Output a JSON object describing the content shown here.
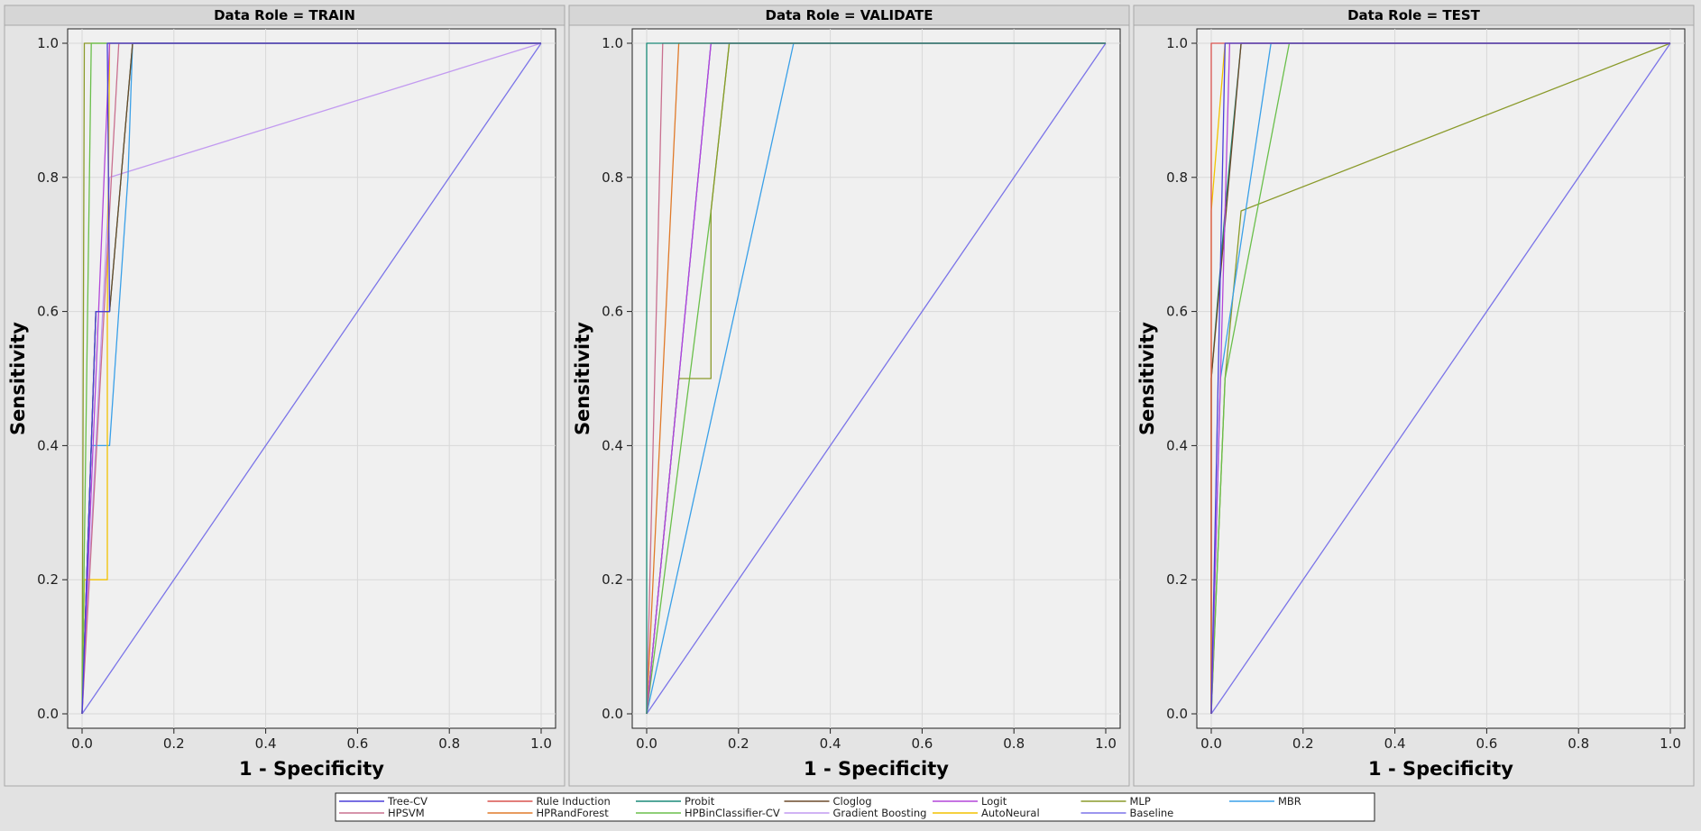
{
  "colors": {
    "Tree-CV": "#4a3fd8",
    "Rule Induction": "#d9534f",
    "Probit": "#1a8a78",
    "Cloglog": "#6b4a2a",
    "Logit": "#b347d9",
    "MLP": "#8a9a2a",
    "MBR": "#3aa0e8",
    "HPSVM": "#c9708f",
    "HPRandForest": "#e07a2a",
    "HPBinClassifier-CV": "#6abf4b",
    "Gradient Boosting": "#c29af0",
    "AutoNeural": "#f2c200",
    "Baseline": "#7b74e8"
  },
  "legend": {
    "placement": "bottom-center",
    "entries": [
      "Tree-CV",
      "Rule Induction",
      "Probit",
      "Cloglog",
      "Logit",
      "MLP",
      "MBR",
      "HPSVM",
      "HPRandForest",
      "HPBinClassifier-CV",
      "Gradient Boosting",
      "AutoNeural",
      "Baseline"
    ]
  },
  "chart_data": [
    {
      "type": "line",
      "title": "Data Role = TRAIN",
      "xlabel": "1 - Specificity",
      "ylabel": "Sensitivity",
      "xlim": [
        0,
        1
      ],
      "ylim": [
        0,
        1
      ],
      "xticks": [
        "0.0",
        "0.2",
        "0.4",
        "0.6",
        "0.8",
        "1.0"
      ],
      "yticks": [
        "0.0",
        "0.2",
        "0.4",
        "0.6",
        "0.8",
        "1.0"
      ],
      "grid": true,
      "series": [
        {
          "name": "Baseline",
          "x": [
            0,
            1
          ],
          "y": [
            0,
            1
          ]
        },
        {
          "name": "Gradient Boosting",
          "x": [
            0,
            0.06,
            1
          ],
          "y": [
            0,
            0.8,
            1
          ]
        },
        {
          "name": "MBR",
          "x": [
            0,
            0.02,
            0.06,
            0.1,
            0.11,
            1
          ],
          "y": [
            0,
            0.4,
            0.4,
            0.8,
            1,
            1
          ]
        },
        {
          "name": "AutoNeural",
          "x": [
            0,
            0.005,
            0.055,
            0.055,
            0.06,
            1
          ],
          "y": [
            0,
            0.2,
            0.2,
            0.6,
            1,
            1
          ]
        },
        {
          "name": "Probit",
          "x": [
            0,
            0.03,
            0.06,
            0.11,
            1
          ],
          "y": [
            0,
            0.6,
            0.6,
            1,
            1
          ]
        },
        {
          "name": "Cloglog",
          "x": [
            0,
            0.03,
            0.06,
            0.11,
            1
          ],
          "y": [
            0,
            0.6,
            0.6,
            1,
            1
          ]
        },
        {
          "name": "HPSVM",
          "x": [
            0,
            0.08,
            1
          ],
          "y": [
            0,
            1,
            1
          ]
        },
        {
          "name": "MLP",
          "x": [
            0,
            0.005,
            0.05,
            1
          ],
          "y": [
            0,
            1,
            1,
            1
          ]
        },
        {
          "name": "HPBinClassifier-CV",
          "x": [
            0,
            0.02,
            1
          ],
          "y": [
            0,
            1,
            1
          ]
        },
        {
          "name": "Logit",
          "x": [
            0,
            0.06,
            1
          ],
          "y": [
            0,
            1,
            1
          ]
        },
        {
          "name": "Tree-CV",
          "x": [
            0,
            0.03,
            0.06,
            0.055,
            1
          ],
          "y": [
            0,
            0.6,
            0.6,
            1,
            1
          ]
        }
      ]
    },
    {
      "type": "line",
      "title": "Data Role = VALIDATE",
      "xlabel": "1 - Specificity",
      "ylabel": "Sensitivity",
      "xlim": [
        0,
        1
      ],
      "ylim": [
        0,
        1
      ],
      "xticks": [
        "0.0",
        "0.2",
        "0.4",
        "0.6",
        "0.8",
        "1.0"
      ],
      "yticks": [
        "0.0",
        "0.2",
        "0.4",
        "0.6",
        "0.8",
        "1.0"
      ],
      "grid": true,
      "series": [
        {
          "name": "Baseline",
          "x": [
            0,
            1
          ],
          "y": [
            0,
            1
          ]
        },
        {
          "name": "MBR",
          "x": [
            0,
            0.32,
            1
          ],
          "y": [
            0,
            1,
            1
          ]
        },
        {
          "name": "HPBinClassifier-CV",
          "x": [
            0,
            0.14,
            0.14,
            0.18,
            1
          ],
          "y": [
            0,
            0.75,
            0.75,
            1,
            1
          ]
        },
        {
          "name": "MLP",
          "x": [
            0,
            0.07,
            0.14,
            0.14,
            0.18,
            1
          ],
          "y": [
            0,
            0.5,
            0.5,
            0.75,
            1,
            1
          ]
        },
        {
          "name": "Tree-CV",
          "x": [
            0,
            0.14,
            1
          ],
          "y": [
            0,
            1,
            1
          ]
        },
        {
          "name": "Logit",
          "x": [
            0,
            0.14,
            1
          ],
          "y": [
            0,
            1,
            1
          ]
        },
        {
          "name": "HPRandForest",
          "x": [
            0,
            0.07,
            1
          ],
          "y": [
            0,
            1,
            1
          ]
        },
        {
          "name": "HPSVM",
          "x": [
            0,
            0.035,
            1
          ],
          "y": [
            0,
            1,
            1
          ]
        },
        {
          "name": "Probit",
          "x": [
            0,
            0,
            1
          ],
          "y": [
            0,
            1,
            1
          ]
        }
      ]
    },
    {
      "type": "line",
      "title": "Data Role = TEST",
      "xlabel": "1 - Specificity",
      "ylabel": "Sensitivity",
      "xlim": [
        0,
        1
      ],
      "ylim": [
        0,
        1
      ],
      "xticks": [
        "0.0",
        "0.2",
        "0.4",
        "0.6",
        "0.8",
        "1.0"
      ],
      "yticks": [
        "0.0",
        "0.2",
        "0.4",
        "0.6",
        "0.8",
        "1.0"
      ],
      "grid": true,
      "series": [
        {
          "name": "Baseline",
          "x": [
            0,
            1
          ],
          "y": [
            0,
            1
          ]
        },
        {
          "name": "MLP",
          "x": [
            0,
            0.03,
            0.065,
            1
          ],
          "y": [
            0,
            0.5,
            0.75,
            1
          ]
        },
        {
          "name": "HPBinClassifier-CV",
          "x": [
            0,
            0.03,
            0.17,
            1
          ],
          "y": [
            0,
            0.5,
            1,
            1
          ]
        },
        {
          "name": "MBR",
          "x": [
            0,
            0.02,
            0.13,
            1
          ],
          "y": [
            0,
            0.5,
            1,
            1
          ]
        },
        {
          "name": "Probit",
          "x": [
            0,
            0,
            0.03,
            0.065,
            1
          ],
          "y": [
            0,
            0.5,
            0.75,
            1,
            1
          ]
        },
        {
          "name": "Cloglog",
          "x": [
            0,
            0,
            0.065,
            1
          ],
          "y": [
            0,
            0.5,
            1,
            1
          ]
        },
        {
          "name": "Logit",
          "x": [
            0,
            0.04,
            1
          ],
          "y": [
            0,
            1,
            1
          ]
        },
        {
          "name": "AutoNeural",
          "x": [
            0,
            0,
            0.03,
            1
          ],
          "y": [
            0,
            0.75,
            1,
            1
          ]
        },
        {
          "name": "Rule Induction",
          "x": [
            0,
            0,
            1
          ],
          "y": [
            0,
            1,
            1
          ]
        },
        {
          "name": "Tree-CV",
          "x": [
            0,
            0.03,
            1
          ],
          "y": [
            0,
            1,
            1
          ]
        }
      ]
    }
  ]
}
